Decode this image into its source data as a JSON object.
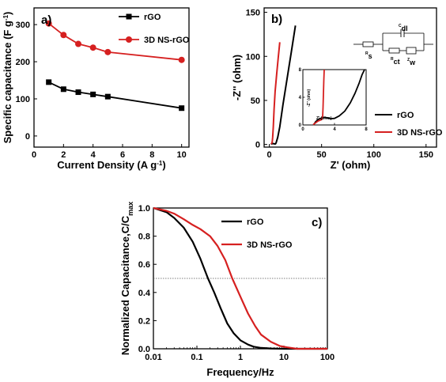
{
  "chart_data": [
    {
      "type": "line",
      "panel_label": "a)",
      "xlabel": "Current Density (A g",
      "xlabel_sup": "-1",
      "xlabel_end": ")",
      "ylabel": "Specific capacitance (F g",
      "ylabel_sup": "-1",
      "ylabel_end": ")",
      "xlim": [
        0,
        10.5
      ],
      "ylim": [
        -30,
        345
      ],
      "xticks": [
        0,
        2,
        4,
        6,
        8,
        10
      ],
      "yticks": [
        0,
        100,
        200,
        300
      ],
      "grid": false,
      "legend": "top-right",
      "series": [
        {
          "name": "rGO",
          "color": "#000000",
          "marker": "square",
          "x": [
            1,
            2,
            3,
            4,
            5,
            10
          ],
          "y": [
            145,
            126,
            118,
            112,
            106,
            75
          ]
        },
        {
          "name": "3D NS-rGO",
          "color": "#d62020",
          "marker": "circle",
          "x": [
            1,
            2,
            3,
            4,
            5,
            10
          ],
          "y": [
            303,
            272,
            248,
            238,
            226,
            205
          ]
        }
      ]
    },
    {
      "type": "line",
      "panel_label": "b)",
      "xlabel": "Z' (ohm)",
      "ylabel": "-Z'' (ohm)",
      "xlim": [
        -5,
        160
      ],
      "ylim": [
        -3,
        155
      ],
      "xticks": [
        0,
        50,
        100,
        150
      ],
      "yticks": [
        0,
        50,
        100,
        150
      ],
      "grid": false,
      "legend": "bottom-right",
      "series": [
        {
          "name": "rGO",
          "color": "#000000",
          "x": [
            1.5,
            2.5,
            3.5,
            4.5,
            5.5,
            6,
            6.5,
            8,
            10,
            13,
            17,
            21,
            25
          ],
          "y": [
            0.2,
            0.8,
            1.0,
            0.8,
            0.6,
            0.8,
            2,
            8,
            20,
            45,
            75,
            105,
            135
          ]
        },
        {
          "name": "3D NS-rGO",
          "color": "#d62020",
          "x": [
            1.6,
            2.2,
            2.6,
            2.9,
            3.2,
            3.8,
            4.5,
            5.5,
            7,
            8.5,
            10
          ],
          "y": [
            0.5,
            1.0,
            2,
            4,
            8,
            20,
            40,
            60,
            80,
            98,
            116
          ]
        }
      ],
      "inset": {
        "xlabel": "Z' (ohm)",
        "ylabel": "-Z'' (ohm)",
        "xlim": [
          0,
          8
        ],
        "ylim": [
          0,
          8
        ],
        "xticks": [
          0,
          4,
          8
        ],
        "yticks": [
          0,
          4,
          8
        ],
        "series": [
          {
            "name": "rGO",
            "color": "#000000",
            "x": [
              1.4,
              1.6,
              2.0,
              2.6,
              3.0,
              3.5,
              4.0,
              4.6,
              5.3,
              6.0,
              6.6,
              7.1,
              7.5,
              7.8
            ],
            "y": [
              0.1,
              0.45,
              0.85,
              1.1,
              1.05,
              0.9,
              0.95,
              1.3,
              2.0,
              3.2,
              4.6,
              6.0,
              7.3,
              8.0
            ]
          },
          {
            "name": "3D NS-rGO",
            "color": "#d62020",
            "x": [
              1.3,
              1.6,
              1.9,
              2.2,
              2.4,
              2.5,
              2.55,
              2.6,
              2.65,
              2.7
            ],
            "y": [
              0.05,
              0.3,
              0.55,
              0.7,
              0.8,
              1.2,
              2.5,
              4.5,
              6.5,
              8.0
            ]
          }
        ]
      },
      "circuit": {
        "labels": [
          "Rs",
          "Cdl",
          "Rct",
          "Zw"
        ]
      }
    },
    {
      "type": "line",
      "panel_label": "c)",
      "xlabel": "Frequency/Hz",
      "ylabel": "Normalized Capacitance,C/C",
      "ylabel_sub": "max",
      "xscale": "log",
      "xlim": [
        0.01,
        100
      ],
      "ylim": [
        0.0,
        1.0
      ],
      "xticks": [
        "0.01",
        "0.1",
        "1",
        "10",
        "100"
      ],
      "yticks": [
        "0.0",
        "0.2",
        "0.4",
        "0.6",
        "0.8",
        "1.0"
      ],
      "grid": false,
      "legend": "top-right",
      "reference_line": {
        "y": 0.5,
        "style": "dotted"
      },
      "series": [
        {
          "name": "rGO",
          "color": "#000000",
          "x": [
            0.01,
            0.02,
            0.03,
            0.05,
            0.08,
            0.12,
            0.18,
            0.25,
            0.35,
            0.5,
            0.7,
            1.0,
            1.5,
            2,
            3,
            5,
            10,
            100
          ],
          "y": [
            1.0,
            0.97,
            0.93,
            0.86,
            0.76,
            0.64,
            0.5,
            0.4,
            0.29,
            0.18,
            0.11,
            0.06,
            0.03,
            0.015,
            0.006,
            0.002,
            0.0,
            0.0
          ]
        },
        {
          "name": "3D NS-rGO",
          "color": "#d62020",
          "x": [
            0.01,
            0.02,
            0.03,
            0.05,
            0.08,
            0.12,
            0.2,
            0.3,
            0.45,
            0.65,
            1.0,
            1.5,
            2.2,
            3,
            5,
            8,
            12,
            20,
            100
          ],
          "y": [
            1.0,
            0.98,
            0.96,
            0.92,
            0.88,
            0.85,
            0.8,
            0.73,
            0.63,
            0.5,
            0.37,
            0.25,
            0.16,
            0.1,
            0.05,
            0.02,
            0.01,
            0.0,
            0.0
          ]
        }
      ]
    }
  ]
}
